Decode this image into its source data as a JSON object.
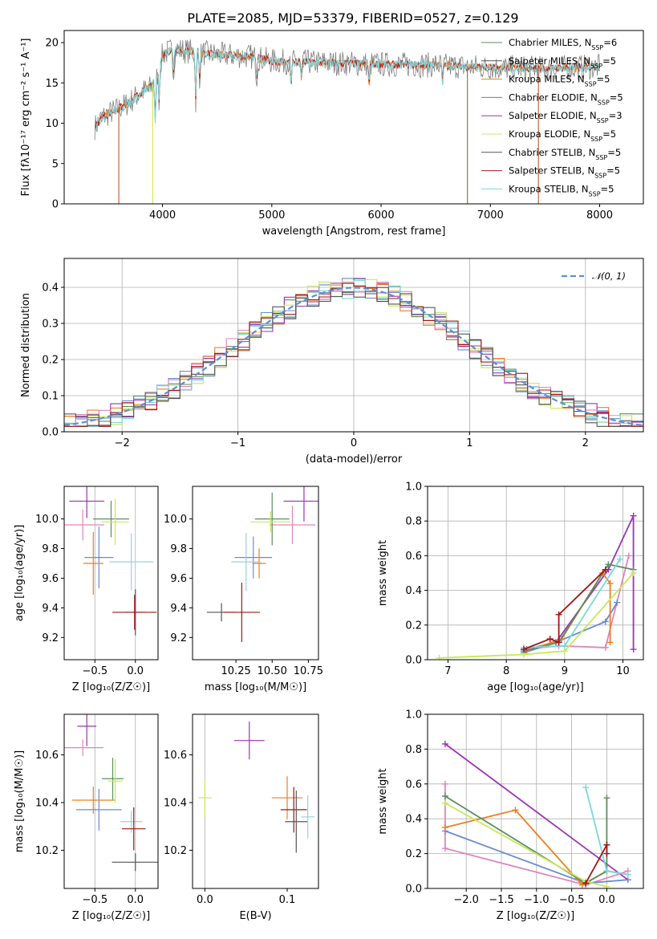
{
  "title": "PLATE=2085, MJD=53379, FIBERID=0527, z=0.129",
  "colors": {
    "gray": "#7f7f7f",
    "cyan": "#79d8dd",
    "red": "#b31b1b",
    "orange": "#ee7f1f",
    "green": "#5b8f5e",
    "purple": "#9b35b5",
    "yellow": "#d8e65a",
    "dark": "#555555",
    "pink": "#e085ba",
    "blue": "#6a8bd2",
    "lightblue": "#9acfe8",
    "darkred": "#a31414",
    "rust": "#c8643c",
    "lime": "#c6e85b"
  },
  "chart_data": [
    {
      "type": "line",
      "xlabel": "wavelength [Angstrom, rest frame]",
      "ylabel": "Flux [fλ10⁻¹⁷ erg cm⁻² s⁻¹ A⁻¹]",
      "xlim": [
        3100,
        8400
      ],
      "ylim": [
        0,
        21.5
      ],
      "xticks": [
        "4000",
        "5000",
        "6000",
        "7000",
        "8000"
      ],
      "yticks": [
        "0",
        "5",
        "10",
        "15",
        "20"
      ],
      "legend_position": "right",
      "series": [
        {
          "name": "Chabrier MILES, N",
          "sub": "SSP",
          "tail": "=6",
          "color": "#5b8f5e"
        },
        {
          "name": "Salpeter MILES, N",
          "sub": "SSP",
          "tail": "=5",
          "color": "#555555"
        },
        {
          "name": "Kroupa MILES, N",
          "sub": "SSP",
          "tail": "=5",
          "color": "#ee7f1f"
        },
        {
          "name": "Chabrier ELODIE, N",
          "sub": "SSP",
          "tail": "=5",
          "color": "#5b8f5e"
        },
        {
          "name": "Salpeter ELODIE, N",
          "sub": "SSP",
          "tail": "=3",
          "color": "#9b35b5"
        },
        {
          "name": "Kroupa ELODIE, N",
          "sub": "SSP",
          "tail": "=5",
          "color": "#d8e65a"
        },
        {
          "name": "Chabrier STELIB, N",
          "sub": "SSP",
          "tail": "=5",
          "color": "#555555"
        },
        {
          "name": "Salpeter STELIB, N",
          "sub": "SSP",
          "tail": "=5",
          "color": "#b31b1b"
        },
        {
          "name": "Kroupa STELIB, N",
          "sub": "SSP",
          "tail": "=5",
          "color": "#79d8dd"
        }
      ],
      "continuum": {
        "x": [
          3380,
          3450,
          3600,
          3700,
          3800,
          3900,
          3950,
          4000,
          4100,
          4300,
          4500,
          4800,
          5000,
          5200,
          5500,
          6000,
          6500,
          7000,
          7500,
          8000,
          8400
        ],
        "y": [
          9.5,
          10.8,
          11.8,
          12.6,
          13.8,
          14.5,
          16,
          18.5,
          19.2,
          18.8,
          18.5,
          18.3,
          17.7,
          17.6,
          17.5,
          17.3,
          17.2,
          16.9,
          16.8,
          17.0,
          17.2
        ]
      }
    },
    {
      "type": "bar",
      "xlabel": "(data-model)/error",
      "ylabel": "Normed distribution",
      "xlim": [
        -2.5,
        2.5
      ],
      "ylim": [
        0,
        0.48
      ],
      "xticks": [
        "−2",
        "−1",
        "0",
        "1",
        "2"
      ],
      "yticks": [
        "0.0",
        "0.1",
        "0.2",
        "0.3",
        "0.4"
      ],
      "grid": true,
      "legend": "𝒩(0, 1)",
      "legend_position": "top-right"
    },
    {
      "type": "scatter",
      "xlabel": "Z [log₁₀(Z/Z☉)]",
      "ylabel": "age  [log₁₀(age/yr)]",
      "xlim": [
        -0.88,
        0.28
      ],
      "ylim": [
        9.05,
        10.22
      ],
      "xticks": [
        "−0.5",
        "0.0"
      ],
      "yticks": [
        "9.2",
        "9.4",
        "9.6",
        "9.8",
        "10.0"
      ],
      "points": [
        {
          "x": -0.6,
          "y": 10.12,
          "c": "#9b35b5"
        },
        {
          "x": -0.65,
          "y": 9.96,
          "c": "#e085ba"
        },
        {
          "x": -0.45,
          "y": 9.74,
          "c": "#6a8bd2"
        },
        {
          "x": -0.52,
          "y": 9.7,
          "c": "#ee7f1f"
        },
        {
          "x": -0.3,
          "y": 10.0,
          "c": "#5b8f5e"
        },
        {
          "x": -0.25,
          "y": 9.98,
          "c": "#c6e85b"
        },
        {
          "x": -0.05,
          "y": 9.71,
          "c": "#9acfe8"
        },
        {
          "x": 0.0,
          "y": 9.37,
          "c": "#555555"
        },
        {
          "x": -0.01,
          "y": 9.37,
          "c": "#a31414"
        }
      ]
    },
    {
      "type": "scatter",
      "xlabel": "mass [log₁₀(M/M☉)]",
      "xlim": [
        9.95,
        10.82
      ],
      "ylim": [
        9.05,
        10.22
      ],
      "xticks": [
        "10.25",
        "10.50",
        "10.75"
      ],
      "yticks": [
        "9.2",
        "9.4",
        "9.6",
        "9.8",
        "10.0"
      ],
      "points": [
        {
          "x": 10.72,
          "y": 10.12,
          "c": "#9b35b5"
        },
        {
          "x": 10.64,
          "y": 9.96,
          "c": "#e085ba"
        },
        {
          "x": 10.37,
          "y": 9.74,
          "c": "#6a8bd2"
        },
        {
          "x": 10.41,
          "y": 9.7,
          "c": "#ee7f1f"
        },
        {
          "x": 10.5,
          "y": 10.0,
          "c": "#5b8f5e"
        },
        {
          "x": 10.49,
          "y": 9.98,
          "c": "#c6e85b"
        },
        {
          "x": 10.32,
          "y": 9.71,
          "c": "#9acfe8"
        },
        {
          "x": 10.15,
          "y": 9.37,
          "c": "#555555"
        },
        {
          "x": 10.29,
          "y": 9.37,
          "c": "#a31414"
        }
      ]
    },
    {
      "type": "line",
      "xlabel": "age  [log₁₀(age/yr)]",
      "ylabel": "mass weight",
      "xlim": [
        6.65,
        10.35
      ],
      "ylim": [
        0,
        1.0
      ],
      "xticks": [
        "7",
        "8",
        "9",
        "10"
      ],
      "yticks": [
        "0.0",
        "0.2",
        "0.4",
        "0.6",
        "0.8",
        "1.0"
      ],
      "grid": true,
      "series": [
        {
          "c": "#9b35b5",
          "x": [
            8.35,
            8.85,
            9.75,
            10.18,
            10.18
          ],
          "y": [
            0.06,
            0.1,
            0.52,
            0.83,
            0.06
          ]
        },
        {
          "c": "#e085ba",
          "x": [
            8.3,
            8.9,
            9.7,
            10.1
          ],
          "y": [
            0.06,
            0.08,
            0.07,
            0.6
          ]
        },
        {
          "c": "#6a8bd2",
          "x": [
            8.3,
            8.85,
            9.7,
            9.9
          ],
          "y": [
            0.04,
            0.1,
            0.22,
            0.33
          ]
        },
        {
          "c": "#ee7f1f",
          "x": [
            8.35,
            8.95,
            9.65,
            9.78,
            9.78
          ],
          "y": [
            0.05,
            0.12,
            0.5,
            0.44,
            0.1
          ]
        },
        {
          "c": "#5b8f5e",
          "x": [
            8.3,
            8.9,
            9.75,
            10.18
          ],
          "y": [
            0.05,
            0.1,
            0.55,
            0.52
          ]
        },
        {
          "c": "#c6e85b",
          "x": [
            6.85,
            8.3,
            9.0,
            10.18
          ],
          "y": [
            0.01,
            0.03,
            0.05,
            0.5
          ]
        },
        {
          "c": "#79d8dd",
          "x": [
            8.3,
            9.0,
            9.95
          ],
          "y": [
            0.07,
            0.08,
            0.58
          ]
        },
        {
          "c": "#a31414",
          "x": [
            8.3,
            8.75,
            8.9,
            8.9,
            9.7
          ],
          "y": [
            0.06,
            0.12,
            0.1,
            0.26,
            0.52
          ]
        }
      ]
    },
    {
      "type": "scatter",
      "xlabel": "Z [log₁₀(Z/Z☉)]",
      "ylabel": "mass [log₁₀(M/M☉)]",
      "xlim": [
        -0.88,
        0.28
      ],
      "ylim": [
        10.04,
        10.77
      ],
      "xticks": [
        "−0.5",
        "0.0"
      ],
      "yticks": [
        "10.2",
        "10.4",
        "10.6"
      ],
      "points": [
        {
          "x": -0.6,
          "y": 10.72,
          "c": "#9b35b5"
        },
        {
          "x": -0.65,
          "y": 10.63,
          "c": "#e085ba"
        },
        {
          "x": -0.45,
          "y": 10.37,
          "c": "#6a8bd2"
        },
        {
          "x": -0.52,
          "y": 10.41,
          "c": "#ee7f1f"
        },
        {
          "x": -0.28,
          "y": 10.5,
          "c": "#5b8f5e"
        },
        {
          "x": -0.25,
          "y": 10.49,
          "c": "#c6e85b"
        },
        {
          "x": -0.05,
          "y": 10.32,
          "c": "#9acfe8"
        },
        {
          "x": 0.0,
          "y": 10.15,
          "c": "#555555"
        },
        {
          "x": -0.02,
          "y": 10.29,
          "c": "#a31414"
        }
      ]
    },
    {
      "type": "scatter",
      "xlabel": "E(B-V)",
      "xlim": [
        -0.015,
        0.138
      ],
      "ylim": [
        10.04,
        10.77
      ],
      "xticks": [
        "0.0",
        "0.1"
      ],
      "yticks": [
        "10.2",
        "10.4",
        "10.6"
      ],
      "points": [
        {
          "x": 0.054,
          "y": 10.66,
          "c": "#9b35b5"
        },
        {
          "x": 0.0,
          "y": 10.42,
          "c": "#c6e85b"
        },
        {
          "x": 0.1,
          "y": 10.42,
          "c": "#ee7f1f"
        },
        {
          "x": 0.108,
          "y": 10.37,
          "c": "#a31414"
        },
        {
          "x": 0.111,
          "y": 10.32,
          "c": "#555555"
        },
        {
          "x": 0.125,
          "y": 10.34,
          "c": "#9acfe8"
        }
      ]
    },
    {
      "type": "line",
      "xlabel": "Z [log₁₀(Z/Z☉)]",
      "ylabel": "mass weight",
      "xlim": [
        -2.55,
        0.52
      ],
      "ylim": [
        0,
        1.0
      ],
      "xticks": [
        "−2.0",
        "−1.5",
        "−1.0",
        "−0.5",
        "0.0"
      ],
      "yticks": [
        "0.0",
        "0.2",
        "0.4",
        "0.6",
        "0.8",
        "1.0"
      ],
      "grid": true,
      "series": [
        {
          "c": "#9b35b5",
          "x": [
            -2.3,
            0.3
          ],
          "y": [
            0.83,
            0.05
          ]
        },
        {
          "c": "#e085ba",
          "x": [
            -2.3,
            -2.3,
            -0.3,
            0.3
          ],
          "y": [
            0.6,
            0.23,
            0.02,
            0.1
          ]
        },
        {
          "c": "#6a8bd2",
          "x": [
            -2.3,
            -0.3,
            0.3
          ],
          "y": [
            0.33,
            0.03,
            0.05
          ]
        },
        {
          "c": "#ee7f1f",
          "x": [
            -2.3,
            -1.3,
            -0.35,
            0.0,
            0.3
          ],
          "y": [
            0.35,
            0.45,
            0.02,
            0.1,
            0.08
          ]
        },
        {
          "c": "#5b8f5e",
          "x": [
            -2.3,
            -0.3,
            0.0,
            0.0
          ],
          "y": [
            0.53,
            0.03,
            0.1,
            0.52
          ]
        },
        {
          "c": "#c6e85b",
          "x": [
            -2.3,
            -0.3,
            0.0
          ],
          "y": [
            0.49,
            0.04,
            0.01
          ]
        },
        {
          "c": "#79d8dd",
          "x": [
            -0.3,
            0.0,
            0.3
          ],
          "y": [
            0.58,
            0.1,
            0.08
          ]
        },
        {
          "c": "#a31414",
          "x": [
            -0.3,
            0.0,
            0.0
          ],
          "y": [
            0.03,
            0.25,
            0.2
          ]
        }
      ]
    }
  ]
}
